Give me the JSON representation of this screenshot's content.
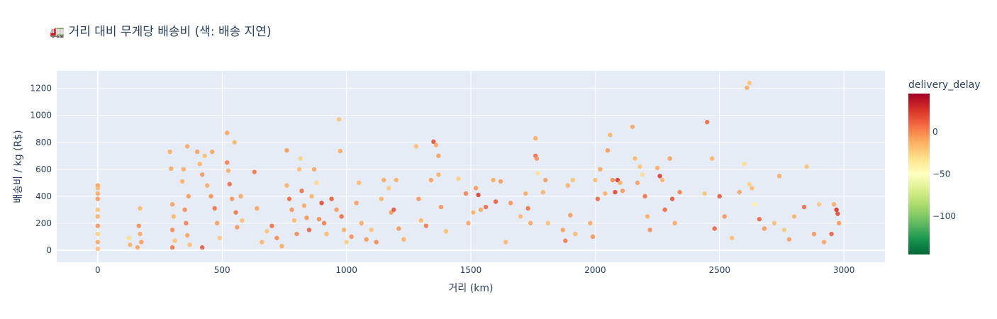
{
  "chart_data": {
    "type": "scatter",
    "title": "🚛 거리 대비 무게당 배송비 (색: 배송 지연)",
    "xlabel": "거리 (km)",
    "ylabel": "배송비 / kg (R$)",
    "xlim": [
      -165,
      3165
    ],
    "ylim": [
      -90,
      1330
    ],
    "xticks": [
      0,
      500,
      1000,
      1500,
      2000,
      2500,
      3000
    ],
    "yticks": [
      0,
      200,
      400,
      600,
      800,
      1000,
      1200
    ],
    "grid": true,
    "colorbar": {
      "title": "delivery_delay",
      "range": [
        -145,
        45
      ],
      "ticks": [
        0,
        -50,
        -100
      ],
      "tick_labels": [
        "0",
        "−50",
        "−100"
      ],
      "colorscale": [
        "#006837",
        "#1a9850",
        "#66bd63",
        "#a6d96a",
        "#d9ef8b",
        "#ffffbf",
        "#fee08b",
        "#fdae61",
        "#f46d43",
        "#d73027",
        "#a50026"
      ]
    },
    "series": [
      {
        "points": [
          [
            0,
            480,
            -8
          ],
          [
            0,
            460,
            -15
          ],
          [
            0,
            420,
            -10
          ],
          [
            0,
            380,
            -6
          ],
          [
            0,
            300,
            -20
          ],
          [
            0,
            250,
            -12
          ],
          [
            0,
            180,
            -5
          ],
          [
            0,
            120,
            -25
          ],
          [
            0,
            60,
            -10
          ],
          [
            0,
            10,
            -18
          ],
          [
            125,
            90,
            -30
          ],
          [
            130,
            40,
            -14
          ],
          [
            160,
            20,
            -9
          ],
          [
            170,
            310,
            -16
          ],
          [
            165,
            180,
            -2
          ],
          [
            170,
            120,
            -11
          ],
          [
            175,
            60,
            -7
          ],
          [
            290,
            730,
            -12
          ],
          [
            295,
            605,
            -10
          ],
          [
            300,
            340,
            -8
          ],
          [
            305,
            250,
            -15
          ],
          [
            300,
            150,
            -3
          ],
          [
            310,
            70,
            -20
          ],
          [
            300,
            20,
            5
          ],
          [
            345,
            600,
            -12
          ],
          [
            360,
            770,
            -10
          ],
          [
            340,
            510,
            -14
          ],
          [
            365,
            400,
            -6
          ],
          [
            350,
            300,
            -2
          ],
          [
            355,
            200,
            2
          ],
          [
            360,
            110,
            -9
          ],
          [
            370,
            40,
            -17
          ],
          [
            400,
            730,
            -8
          ],
          [
            410,
            640,
            -14
          ],
          [
            420,
            560,
            -5
          ],
          [
            430,
            700,
            -18
          ],
          [
            440,
            480,
            -11
          ],
          [
            460,
            730,
            -9
          ],
          [
            455,
            400,
            -3
          ],
          [
            470,
            310,
            6
          ],
          [
            480,
            200,
            -7
          ],
          [
            490,
            90,
            -22
          ],
          [
            420,
            20,
            12
          ],
          [
            520,
            870,
            -9
          ],
          [
            520,
            650,
            2
          ],
          [
            525,
            590,
            -12
          ],
          [
            530,
            490,
            8
          ],
          [
            540,
            380,
            -4
          ],
          [
            550,
            800,
            -15
          ],
          [
            555,
            280,
            4
          ],
          [
            560,
            170,
            -6
          ],
          [
            575,
            400,
            -10
          ],
          [
            580,
            220,
            -18
          ],
          [
            630,
            580,
            4
          ],
          [
            640,
            310,
            -9
          ],
          [
            660,
            60,
            -15
          ],
          [
            680,
            140,
            -20
          ],
          [
            700,
            180,
            6
          ],
          [
            720,
            90,
            -2
          ],
          [
            740,
            30,
            -11
          ],
          [
            760,
            740,
            -7
          ],
          [
            760,
            480,
            -13
          ],
          [
            770,
            380,
            8
          ],
          [
            780,
            300,
            -4
          ],
          [
            790,
            220,
            -16
          ],
          [
            800,
            120,
            -2
          ],
          [
            810,
            600,
            -18
          ],
          [
            815,
            680,
            -25
          ],
          [
            820,
            440,
            7
          ],
          [
            830,
            330,
            -10
          ],
          [
            840,
            240,
            -5
          ],
          [
            850,
            150,
            10
          ],
          [
            860,
            400,
            -13
          ],
          [
            870,
            600,
            -9
          ],
          [
            880,
            500,
            -28
          ],
          [
            890,
            230,
            -1
          ],
          [
            900,
            350,
            18
          ],
          [
            910,
            200,
            3
          ],
          [
            920,
            120,
            -16
          ],
          [
            940,
            380,
            12
          ],
          [
            960,
            300,
            -6
          ],
          [
            970,
            970,
            -20
          ],
          [
            975,
            735,
            -10
          ],
          [
            980,
            250,
            9
          ],
          [
            990,
            150,
            -14
          ],
          [
            1000,
            60,
            -24
          ],
          [
            1020,
            100,
            -3
          ],
          [
            1040,
            350,
            -8
          ],
          [
            1050,
            500,
            -16
          ],
          [
            1060,
            200,
            -11
          ],
          [
            1080,
            80,
            -6
          ],
          [
            1100,
            150,
            -19
          ],
          [
            1120,
            60,
            -2
          ],
          [
            1140,
            380,
            -14
          ],
          [
            1150,
            520,
            -10
          ],
          [
            1170,
            460,
            -22
          ],
          [
            1180,
            280,
            -7
          ],
          [
            1190,
            300,
            14
          ],
          [
            1200,
            520,
            -12
          ],
          [
            1210,
            160,
            -5
          ],
          [
            1230,
            80,
            -13
          ],
          [
            1280,
            770,
            -18
          ],
          [
            1290,
            380,
            -6
          ],
          [
            1300,
            220,
            -15
          ],
          [
            1320,
            180,
            4
          ],
          [
            1340,
            520,
            -8
          ],
          [
            1350,
            805,
            16
          ],
          [
            1360,
            780,
            -11
          ],
          [
            1370,
            700,
            -7
          ],
          [
            1370,
            560,
            -13
          ],
          [
            1380,
            320,
            -4
          ],
          [
            1400,
            140,
            -18
          ],
          [
            1450,
            530,
            -25
          ],
          [
            1480,
            420,
            2
          ],
          [
            1490,
            200,
            -9
          ],
          [
            1510,
            280,
            -14
          ],
          [
            1520,
            460,
            -6
          ],
          [
            1530,
            410,
            20
          ],
          [
            1540,
            300,
            -10
          ],
          [
            1560,
            320,
            8
          ],
          [
            1590,
            520,
            -12
          ],
          [
            1600,
            360,
            11
          ],
          [
            1620,
            510,
            -7
          ],
          [
            1640,
            60,
            -16
          ],
          [
            1660,
            350,
            -4
          ],
          [
            1700,
            250,
            -15
          ],
          [
            1720,
            420,
            -11
          ],
          [
            1730,
            310,
            6
          ],
          [
            1740,
            200,
            -9
          ],
          [
            1760,
            830,
            -12
          ],
          [
            1760,
            700,
            6
          ],
          [
            1765,
            680,
            -3
          ],
          [
            1770,
            570,
            -32
          ],
          [
            1790,
            430,
            -14
          ],
          [
            1800,
            520,
            -6
          ],
          [
            1810,
            200,
            -18
          ],
          [
            1870,
            150,
            -8
          ],
          [
            1880,
            70,
            4
          ],
          [
            1890,
            480,
            -13
          ],
          [
            1900,
            260,
            -6
          ],
          [
            1910,
            520,
            -20
          ],
          [
            1920,
            120,
            -16
          ],
          [
            1980,
            200,
            -11
          ],
          [
            1990,
            100,
            -4
          ],
          [
            2000,
            520,
            -18
          ],
          [
            2010,
            380,
            9
          ],
          [
            2020,
            600,
            -10
          ],
          [
            2040,
            420,
            -14
          ],
          [
            2050,
            740,
            -7
          ],
          [
            2060,
            855,
            -13
          ],
          [
            2070,
            520,
            -2
          ],
          [
            2080,
            430,
            18
          ],
          [
            2090,
            520,
            24
          ],
          [
            2100,
            500,
            -12
          ],
          [
            2110,
            440,
            -6
          ],
          [
            2150,
            915,
            -10
          ],
          [
            2160,
            680,
            -16
          ],
          [
            2170,
            500,
            -8
          ],
          [
            2180,
            620,
            -20
          ],
          [
            2190,
            560,
            -30
          ],
          [
            2200,
            400,
            5
          ],
          [
            2210,
            250,
            -12
          ],
          [
            2220,
            150,
            -3
          ],
          [
            2250,
            610,
            -12
          ],
          [
            2260,
            550,
            22
          ],
          [
            2270,
            520,
            -15
          ],
          [
            2280,
            300,
            9
          ],
          [
            2300,
            680,
            -8
          ],
          [
            2310,
            380,
            14
          ],
          [
            2320,
            200,
            -10
          ],
          [
            2340,
            430,
            2
          ],
          [
            2440,
            420,
            -20
          ],
          [
            2450,
            950,
            8
          ],
          [
            2470,
            680,
            -14
          ],
          [
            2480,
            160,
            10
          ],
          [
            2500,
            400,
            13
          ],
          [
            2520,
            250,
            -4
          ],
          [
            2550,
            90,
            -17
          ],
          [
            2580,
            430,
            -9
          ],
          [
            2600,
            640,
            -30
          ],
          [
            2610,
            1205,
            -12
          ],
          [
            2620,
            1240,
            -20
          ],
          [
            2620,
            490,
            -25
          ],
          [
            2630,
            460,
            -16
          ],
          [
            2640,
            340,
            -40
          ],
          [
            2660,
            230,
            11
          ],
          [
            2680,
            160,
            -5
          ],
          [
            2720,
            200,
            -18
          ],
          [
            2740,
            550,
            -11
          ],
          [
            2760,
            150,
            -22
          ],
          [
            2780,
            80,
            -8
          ],
          [
            2800,
            250,
            -14
          ],
          [
            2840,
            320,
            8
          ],
          [
            2850,
            620,
            -20
          ],
          [
            2880,
            120,
            -6
          ],
          [
            2900,
            340,
            -22
          ],
          [
            2920,
            60,
            -9
          ],
          [
            2950,
            120,
            10
          ],
          [
            2960,
            340,
            -12
          ],
          [
            2970,
            300,
            25
          ],
          [
            2975,
            270,
            18
          ],
          [
            2980,
            200,
            -5
          ]
        ]
      }
    ]
  }
}
